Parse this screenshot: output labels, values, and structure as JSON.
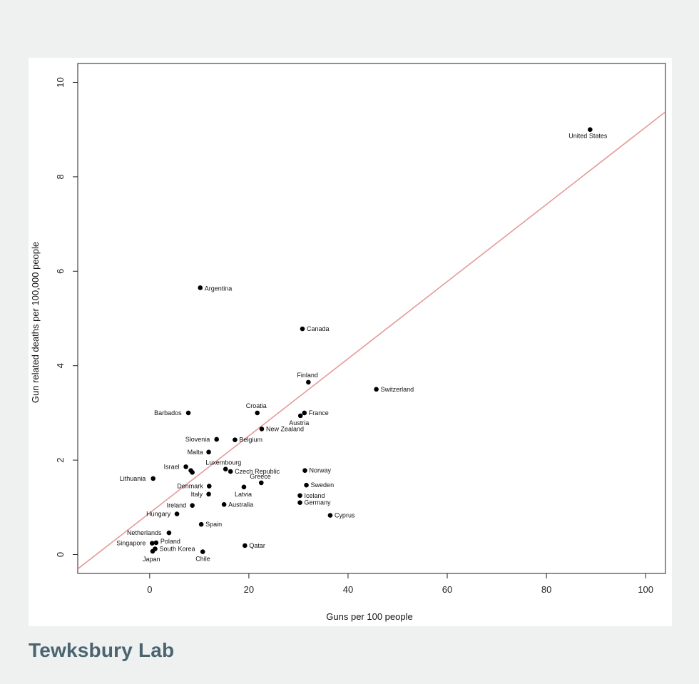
{
  "brand": {
    "name": "Tewksbury Lab"
  },
  "colors": {
    "background": "#eff1f1",
    "brand": "#4a6470",
    "trend_line": "#e59a9a",
    "points": "#000000"
  },
  "chart_data": {
    "type": "scatter",
    "title": "",
    "xlabel": "Guns per 100 people",
    "ylabel": "Gun related deaths per 100,000 people",
    "xlim": [
      -14.5,
      104
    ],
    "ylim": [
      -0.4,
      10.4
    ],
    "xticks": [
      0,
      20,
      40,
      60,
      80,
      100
    ],
    "yticks": [
      0,
      2,
      4,
      6,
      8,
      10
    ],
    "grid": false,
    "legend": "none",
    "trend_line": {
      "intercept": 0.88,
      "slope": 0.0817
    },
    "points": [
      {
        "label": "United States",
        "x": 88.8,
        "y": 9.0
      },
      {
        "label": "Argentina",
        "x": 10.2,
        "y": 5.65
      },
      {
        "label": "Canada",
        "x": 30.8,
        "y": 4.78
      },
      {
        "label": "Finland",
        "x": 32.0,
        "y": 3.65
      },
      {
        "label": "Switzerland",
        "x": 45.7,
        "y": 3.5
      },
      {
        "label": "Barbados",
        "x": 7.8,
        "y": 3.0
      },
      {
        "label": "Croatia",
        "x": 21.7,
        "y": 3.0
      },
      {
        "label": "France",
        "x": 31.2,
        "y": 3.0
      },
      {
        "label": "Austria",
        "x": 30.4,
        "y": 2.94
      },
      {
        "label": "New Zealand",
        "x": 22.6,
        "y": 2.66
      },
      {
        "label": "Slovenia",
        "x": 13.5,
        "y": 2.44
      },
      {
        "label": "Belgium",
        "x": 17.2,
        "y": 2.43
      },
      {
        "label": "Malta",
        "x": 11.9,
        "y": 2.17
      },
      {
        "label": "Israel",
        "x": 7.3,
        "y": 1.86
      },
      {
        "label": "",
        "x": 8.3,
        "y": 1.78
      },
      {
        "label": "",
        "x": 8.6,
        "y": 1.74
      },
      {
        "label": "Luxembourg",
        "x": 15.3,
        "y": 1.81
      },
      {
        "label": "Czech Republic",
        "x": 16.3,
        "y": 1.76
      },
      {
        "label": "Norway",
        "x": 31.3,
        "y": 1.78
      },
      {
        "label": "Lithuania",
        "x": 0.7,
        "y": 1.61
      },
      {
        "label": "Greece",
        "x": 22.5,
        "y": 1.52
      },
      {
        "label": "Denmark",
        "x": 12.0,
        "y": 1.45
      },
      {
        "label": "Latvia",
        "x": 19.0,
        "y": 1.43
      },
      {
        "label": "Sweden",
        "x": 31.6,
        "y": 1.47
      },
      {
        "label": "Italy",
        "x": 11.9,
        "y": 1.28
      },
      {
        "label": "Iceland",
        "x": 30.3,
        "y": 1.25
      },
      {
        "label": "Germany",
        "x": 30.3,
        "y": 1.1
      },
      {
        "label": "Australia",
        "x": 15.0,
        "y": 1.06
      },
      {
        "label": "Ireland",
        "x": 8.6,
        "y": 1.04
      },
      {
        "label": "Hungary",
        "x": 5.5,
        "y": 0.86
      },
      {
        "label": "Cyprus",
        "x": 36.4,
        "y": 0.83
      },
      {
        "label": "Spain",
        "x": 10.4,
        "y": 0.64
      },
      {
        "label": "Netherlands",
        "x": 3.9,
        "y": 0.46
      },
      {
        "label": "Singapore",
        "x": 0.5,
        "y": 0.24
      },
      {
        "label": "Poland",
        "x": 1.3,
        "y": 0.25
      },
      {
        "label": "Qatar",
        "x": 19.2,
        "y": 0.19
      },
      {
        "label": "South Korea",
        "x": 1.1,
        "y": 0.12
      },
      {
        "label": "Japan",
        "x": 0.6,
        "y": 0.07
      },
      {
        "label": "Chile",
        "x": 10.7,
        "y": 0.06
      }
    ]
  }
}
